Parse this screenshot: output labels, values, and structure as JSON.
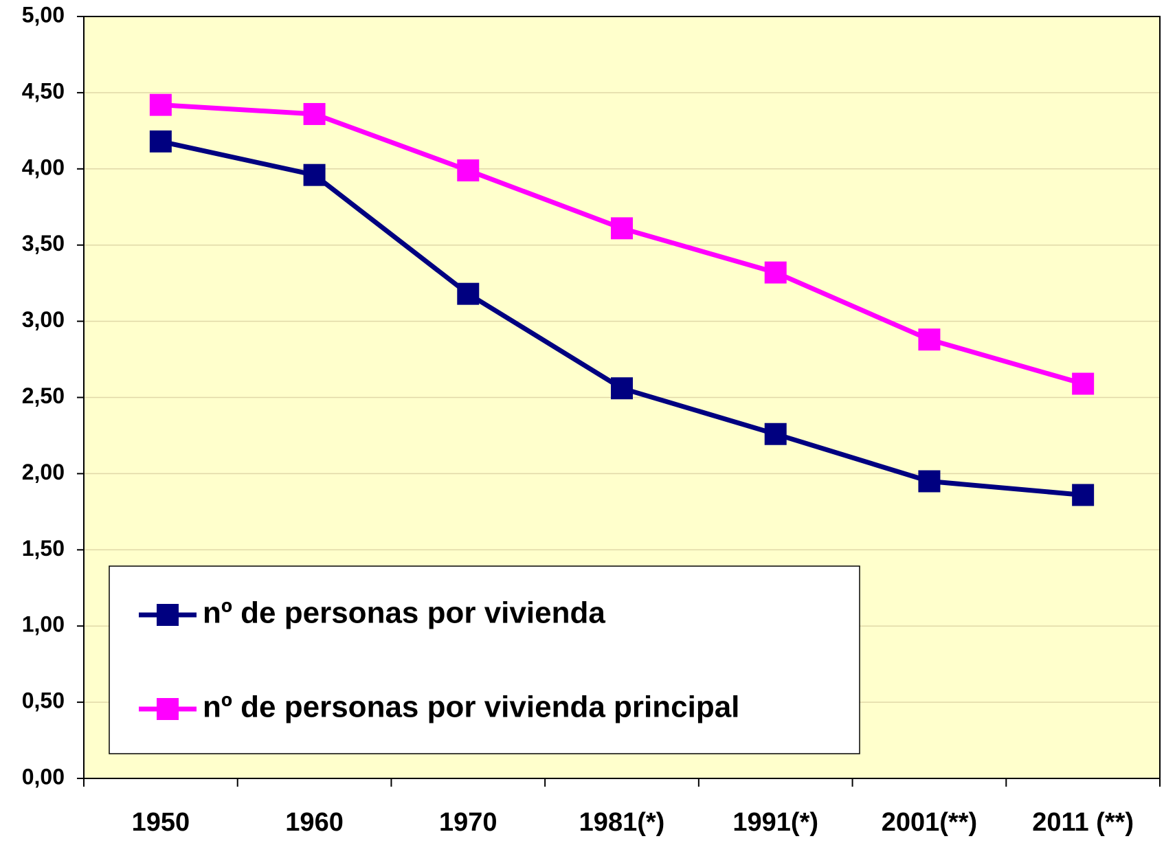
{
  "chart_data": {
    "type": "line",
    "categories": [
      "1950",
      "1960",
      "1970",
      "1981(*)",
      "1991(*)",
      "2001(**)",
      "2011 (**)"
    ],
    "series": [
      {
        "name": "nº de personas por vivienda",
        "color": "#000080",
        "values": [
          4.18,
          3.96,
          3.18,
          2.56,
          2.26,
          1.95,
          1.86
        ]
      },
      {
        "name": "nº de personas por vivienda principal",
        "color": "#ff00ff",
        "values": [
          4.42,
          4.36,
          3.99,
          3.61,
          3.32,
          2.88,
          2.59
        ]
      }
    ],
    "ylim": [
      0,
      5
    ],
    "yticks": [
      {
        "value": 0,
        "label": "0,00"
      },
      {
        "value": 0.5,
        "label": "0,50"
      },
      {
        "value": 1,
        "label": "1,00"
      },
      {
        "value": 1.5,
        "label": "1,50"
      },
      {
        "value": 2,
        "label": "2,00"
      },
      {
        "value": 2.5,
        "label": "2,50"
      },
      {
        "value": 3,
        "label": "3,00"
      },
      {
        "value": 3.5,
        "label": "3,50"
      },
      {
        "value": 4,
        "label": "4,00"
      },
      {
        "value": 4.5,
        "label": "4,50"
      },
      {
        "value": 5,
        "label": "5,00"
      }
    ],
    "grid": true,
    "legend": "lower left",
    "plot_background": "#ffffcc"
  }
}
